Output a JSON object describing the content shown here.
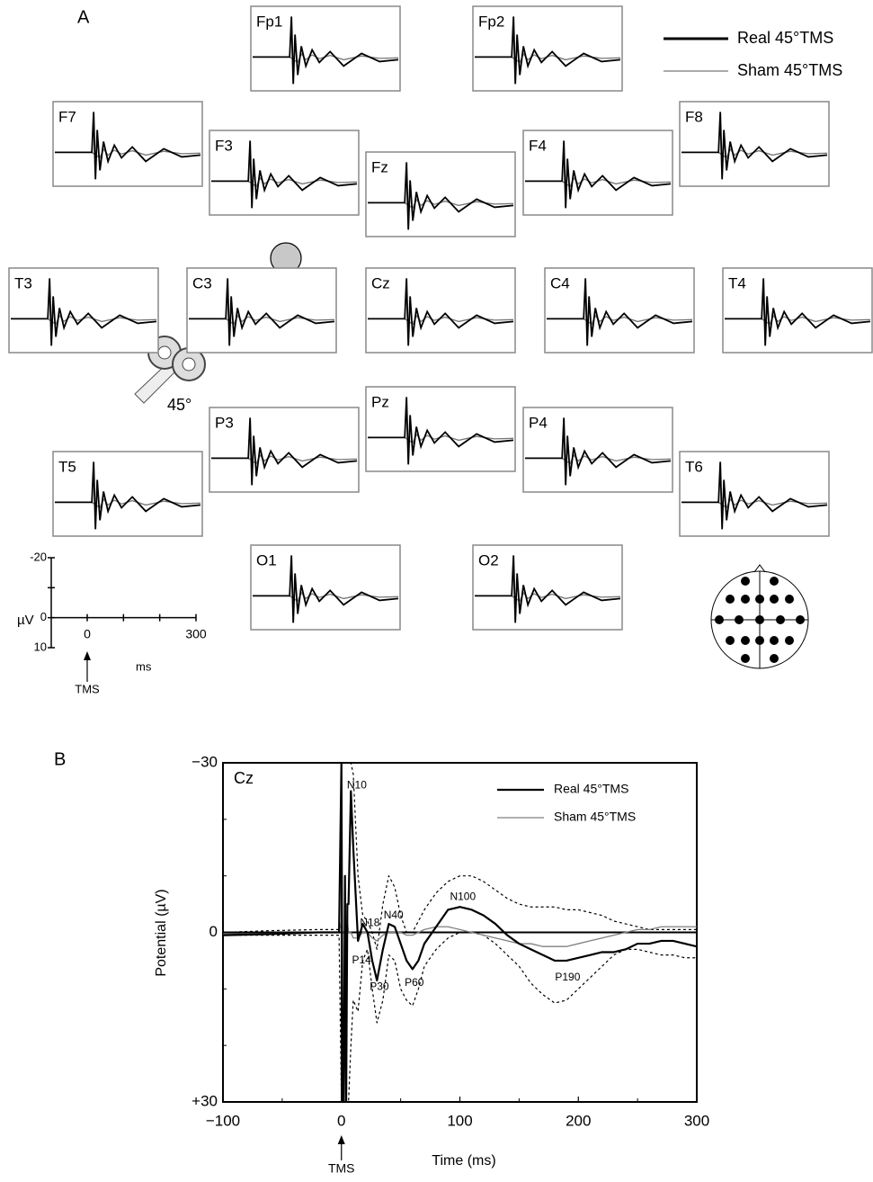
{
  "panel_a": {
    "label": "A",
    "legend": [
      {
        "name": "Real 45°TMS",
        "color": "#000000"
      },
      {
        "name": "Sham 45°TMS",
        "color": "#777777"
      }
    ],
    "electrodes": [
      {
        "label": "Fp1"
      },
      {
        "label": "Fp2"
      },
      {
        "label": "F7"
      },
      {
        "label": "F8"
      },
      {
        "label": "F3"
      },
      {
        "label": "F4"
      },
      {
        "label": "Fz"
      },
      {
        "label": "T3"
      },
      {
        "label": "C3"
      },
      {
        "label": "Cz"
      },
      {
        "label": "C4"
      },
      {
        "label": "T4"
      },
      {
        "label": "P3"
      },
      {
        "label": "Pz"
      },
      {
        "label": "P4"
      },
      {
        "label": "T5"
      },
      {
        "label": "T6"
      },
      {
        "label": "O1"
      },
      {
        "label": "O2"
      }
    ],
    "coil_angle": "45°",
    "scale": {
      "ylim": [
        -20,
        10
      ],
      "yticks": [
        -20,
        0,
        10
      ],
      "yminor": [
        -10
      ],
      "ylabel": "µV",
      "xlim": [
        0,
        300
      ],
      "xticks": [
        0,
        300
      ],
      "xminor": [
        100,
        200
      ],
      "xlabel": "ms",
      "marker": "TMS"
    }
  },
  "chart_data": {
    "type": "line",
    "label": "B",
    "panel_title": "Cz",
    "x_label": "Time (ms)",
    "y_label": "Potential (µV)",
    "marker": "TMS",
    "xlim": [
      -100,
      300
    ],
    "ylim": [
      -30,
      30
    ],
    "y_inverted": true,
    "xticks": [
      {
        "value": -100,
        "label": "−100"
      },
      0,
      100,
      200,
      300
    ],
    "xminor": [
      -50,
      50,
      150,
      250
    ],
    "yticks": [
      {
        "value": -30,
        "label": "−30"
      },
      0,
      {
        "value": 30,
        "label": "+30"
      }
    ],
    "yminor": [
      -20,
      -10,
      10,
      20
    ],
    "x": [
      -100,
      -60,
      -20,
      -2,
      0,
      1,
      2,
      3,
      4,
      5,
      6,
      8,
      10,
      14,
      18,
      22,
      26,
      30,
      35,
      40,
      45,
      50,
      55,
      60,
      65,
      70,
      80,
      90,
      100,
      110,
      120,
      130,
      140,
      150,
      160,
      170,
      180,
      190,
      200,
      210,
      220,
      230,
      240,
      250,
      260,
      270,
      280,
      290,
      300
    ],
    "series": [
      {
        "name": "Real 45°TMS",
        "color": "#000000",
        "width": 2.2,
        "values": [
          0.5,
          0.3,
          0,
          0,
          -30,
          30,
          30,
          -10,
          30,
          -5,
          -5,
          -25,
          -15,
          1.5,
          -1.5,
          0,
          5,
          8.5,
          3,
          -1.5,
          -1,
          2,
          5,
          6.5,
          5,
          2,
          -1,
          -4,
          -4.5,
          -4,
          -3,
          -1.5,
          0.5,
          2,
          3,
          4,
          5,
          5,
          4.5,
          4,
          3.5,
          3.5,
          3,
          2,
          2,
          1.5,
          1.5,
          2,
          2.5
        ]
      },
      {
        "name": "Sham 45°TMS",
        "color": "#808080",
        "width": 1.3,
        "values": [
          0.3,
          0.2,
          0,
          0,
          -2,
          0,
          0,
          0,
          0,
          -2,
          0,
          0,
          1,
          1,
          0,
          0,
          1,
          1.5,
          0.5,
          0,
          0,
          0,
          0.5,
          0.5,
          0,
          -0.5,
          -1,
          -1,
          -0.5,
          0,
          0.5,
          1,
          1.5,
          2,
          2,
          2.5,
          2.5,
          2.5,
          2,
          1.5,
          1,
          0.5,
          0,
          -0.5,
          -0.5,
          -1,
          -1,
          -1,
          -1
        ]
      },
      {
        "color": "#000000",
        "dashed": true,
        "width": 1.2,
        "values": [
          0,
          -0.3,
          -0.5,
          -0.5,
          -30,
          -30,
          -30,
          -30,
          -30,
          -30,
          -30,
          -30,
          -28,
          -10,
          -3,
          -2,
          0,
          3,
          -5,
          -10,
          -8,
          -3,
          0,
          0,
          -2,
          -4,
          -7,
          -9,
          -10,
          -10,
          -9,
          -7.5,
          -6,
          -5,
          -4.5,
          -4.5,
          -4.5,
          -4,
          -4,
          -3.5,
          -3,
          -2,
          -1.5,
          -1,
          -0.5,
          -0.5,
          -0.5,
          -0.5,
          -0.5
        ]
      },
      {
        "color": "#000000",
        "dashed": true,
        "width": 1.2,
        "values": [
          0.5,
          0.5,
          0.5,
          0.5,
          30,
          30,
          30,
          30,
          30,
          30,
          30,
          20,
          12,
          14,
          5,
          3,
          10,
          16,
          12,
          4,
          5,
          10,
          12,
          13,
          10,
          6,
          3,
          1,
          0,
          0,
          0.5,
          2,
          4,
          6,
          9,
          11,
          12.5,
          12,
          10,
          8,
          6,
          4,
          3,
          3,
          3.5,
          4,
          4,
          4.5,
          4.5
        ]
      }
    ],
    "annotations": [
      {
        "text": "N10",
        "x": 13,
        "y": -26
      },
      {
        "text": "N18",
        "x": 24,
        "y": -1.6
      },
      {
        "text": "N40",
        "x": 44,
        "y": -3
      },
      {
        "text": "P14",
        "x": 17,
        "y": 5
      },
      {
        "text": "P30",
        "x": 32,
        "y": 9.7
      },
      {
        "text": "P60",
        "x": 61.5,
        "y": 9
      },
      {
        "text": "N100",
        "x": 102.5,
        "y": -6.2
      },
      {
        "text": "P190",
        "x": 191,
        "y": 8
      }
    ]
  }
}
